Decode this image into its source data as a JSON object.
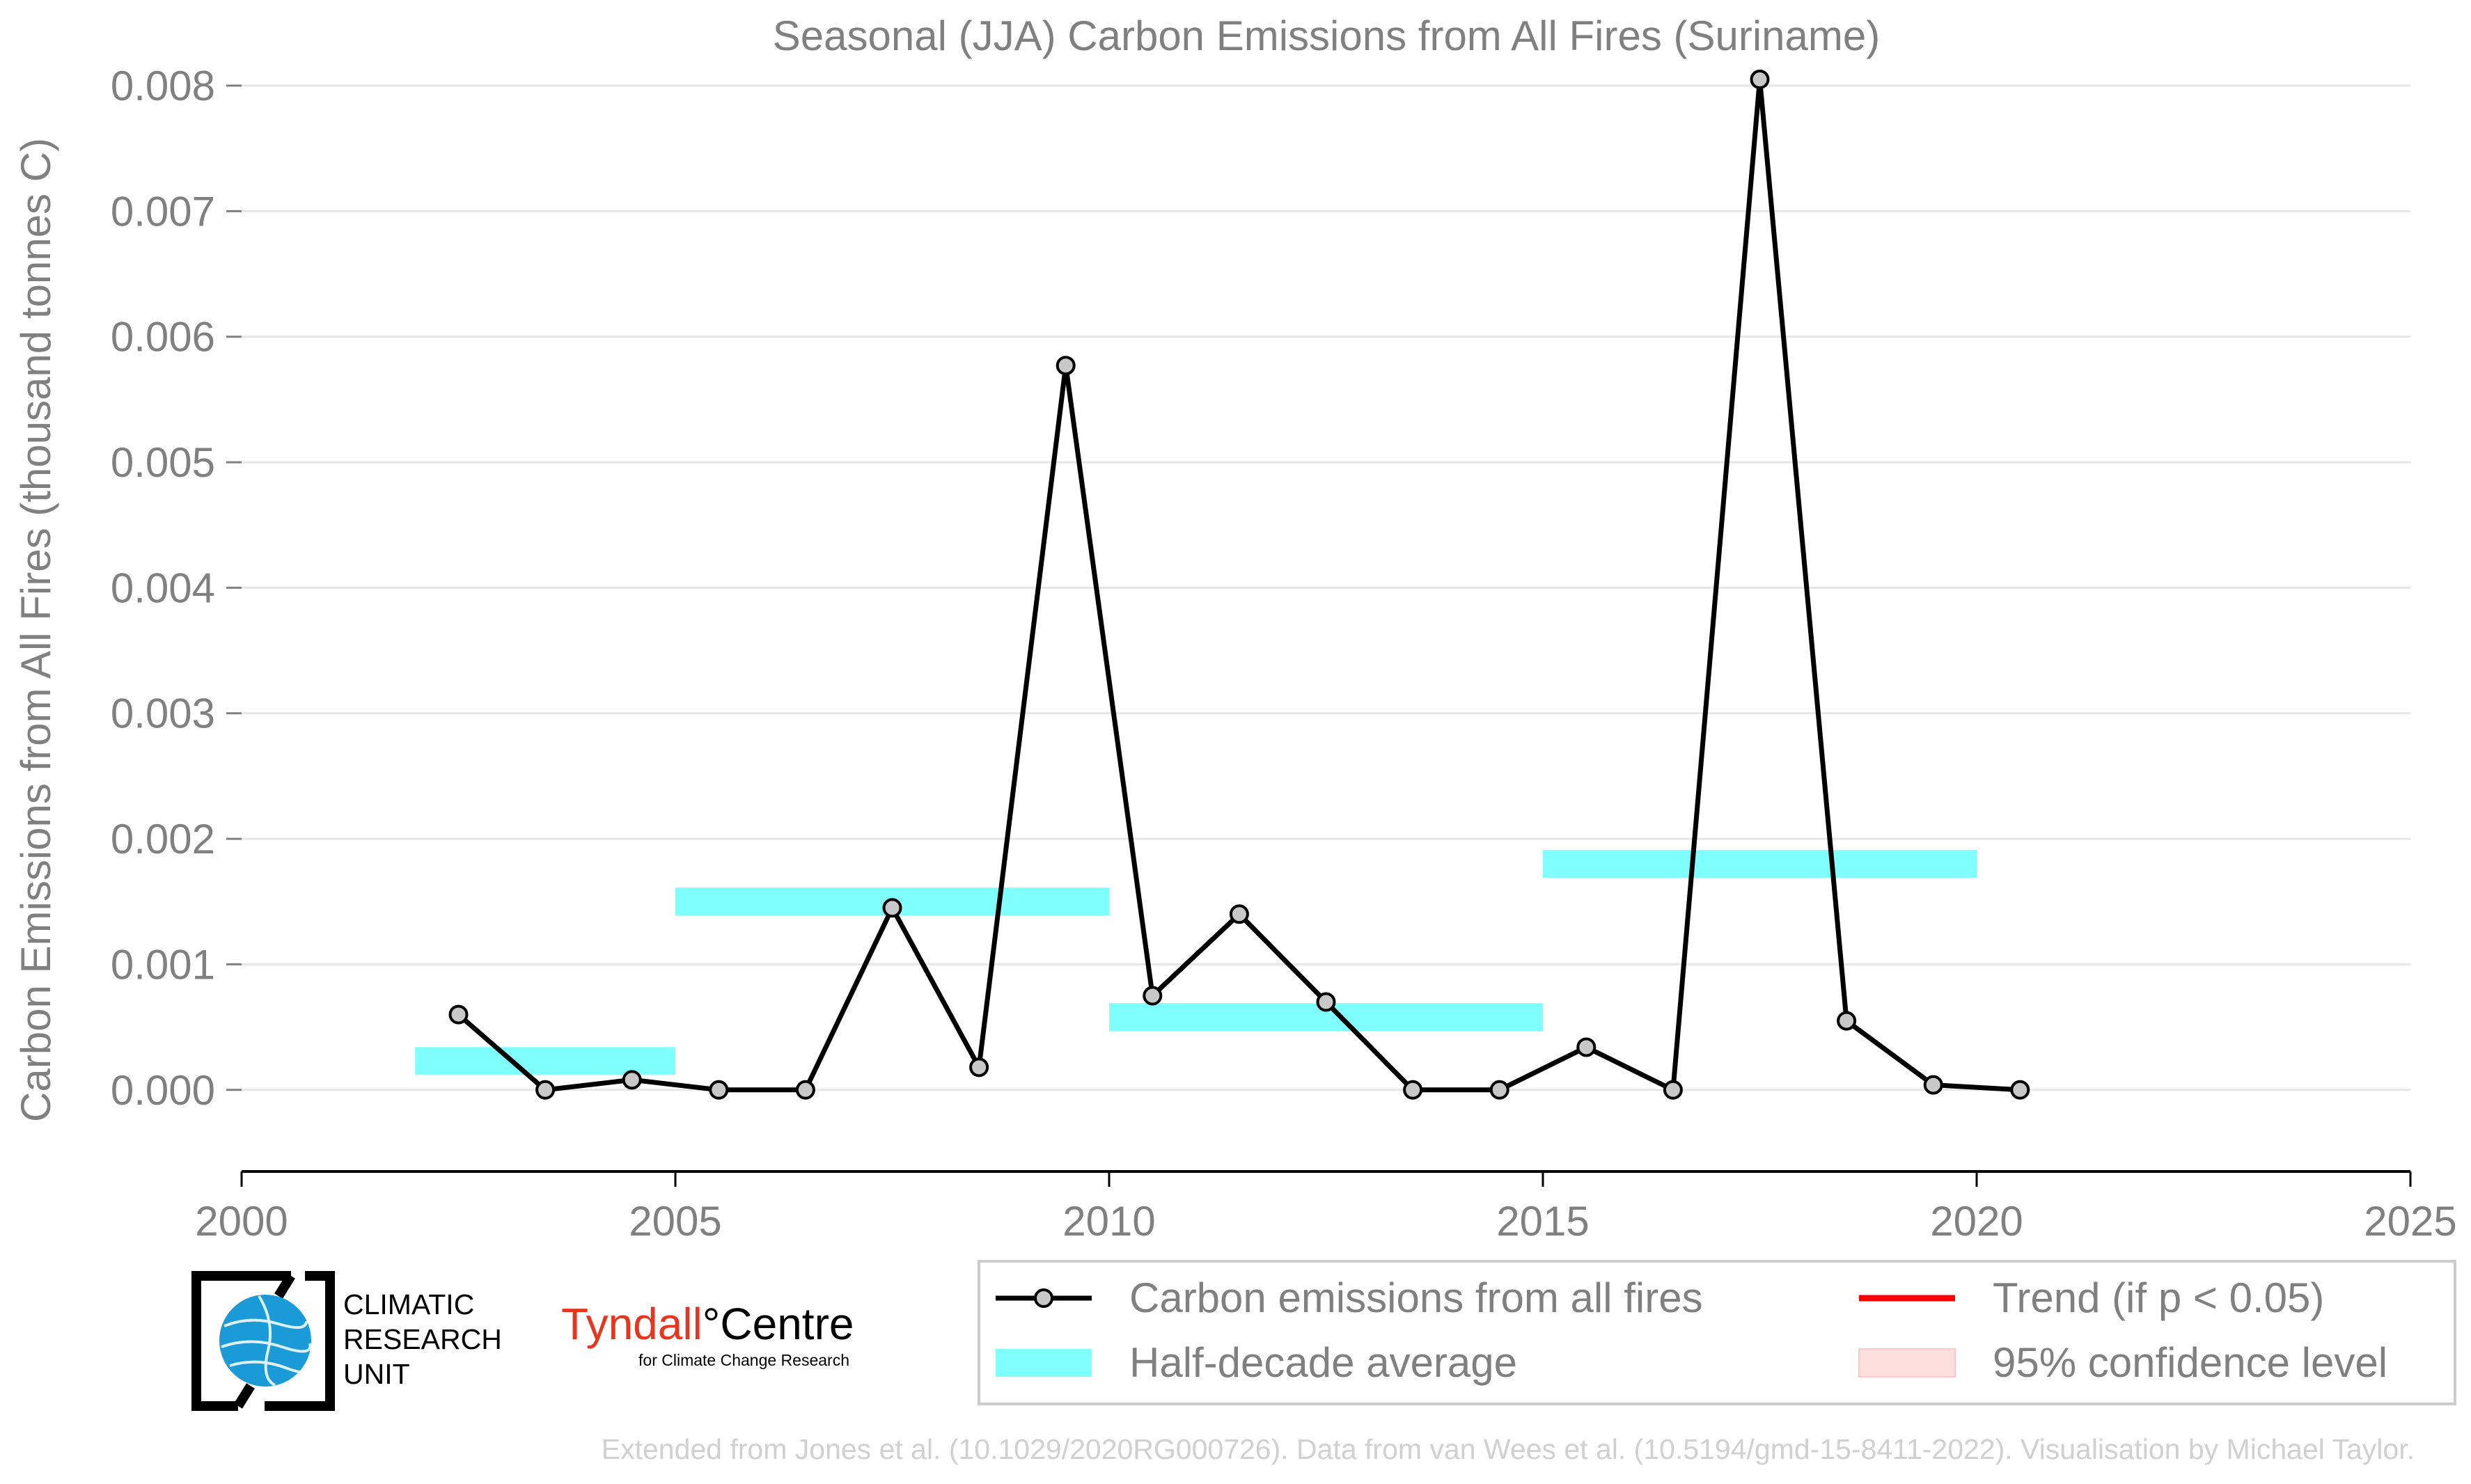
{
  "chart_data": {
    "type": "line",
    "title": "Seasonal (JJA) Carbon Emissions from All Fires (Suriname)",
    "xlabel": "",
    "ylabel": "Carbon Emissions from All Fires (thousand tonnes C)",
    "xlim": [
      2000,
      2025
    ],
    "ylim": [
      -0.00065,
      0.0081
    ],
    "x_ticks": [
      2000,
      2005,
      2010,
      2015,
      2020,
      2025
    ],
    "x_tick_labels": [
      "2000",
      "2005",
      "2010",
      "2015",
      "2020",
      "2025"
    ],
    "y_ticks": [
      0,
      0.001,
      0.002,
      0.003,
      0.004,
      0.005,
      0.006,
      0.007,
      0.008
    ],
    "y_tick_labels": [
      "0.000",
      "0.001",
      "0.002",
      "0.003",
      "0.004",
      "0.005",
      "0.006",
      "0.007",
      "0.008"
    ],
    "grid": "horizontal",
    "series": [
      {
        "name": "Carbon emissions from all fires",
        "color": "#000000",
        "marker_fill": "#c8c8c8",
        "x": [
          2002.5,
          2003.5,
          2004.5,
          2005.5,
          2006.5,
          2007.5,
          2008.5,
          2009.5,
          2010.5,
          2011.5,
          2012.5,
          2013.5,
          2014.5,
          2015.5,
          2016.5,
          2017.5,
          2018.5,
          2019.5,
          2020.5
        ],
        "y": [
          0.0006,
          0.0,
          8e-05,
          0.0,
          0.0,
          0.00145,
          0.00018,
          0.00577,
          0.00075,
          0.0014,
          0.0007,
          0.0,
          0.0,
          0.00034,
          0.0,
          0.00805,
          0.00055,
          4e-05,
          0.0
        ]
      }
    ],
    "half_decade_average": {
      "name": "Half-decade average",
      "color": "#80ffff",
      "segments": [
        {
          "x0": 2002,
          "x1": 2005,
          "y": 0.00023
        },
        {
          "x0": 2005,
          "x1": 2010,
          "y": 0.0015
        },
        {
          "x0": 2010,
          "x1": 2015,
          "y": 0.00058
        },
        {
          "x0": 2015,
          "x1": 2020,
          "y": 0.0018
        }
      ]
    },
    "legend": {
      "position": "bottom-right",
      "items": [
        {
          "label": "Carbon emissions from all fires",
          "kind": "line-marker",
          "color": "#000000"
        },
        {
          "label": "Trend (if p < 0.05)",
          "kind": "line",
          "color": "#ff0000"
        },
        {
          "label": "Half-decade average",
          "kind": "band",
          "color": "#80ffff"
        },
        {
          "label": "95% confidence level",
          "kind": "patch",
          "color": "#ffdede"
        }
      ]
    }
  },
  "logos": {
    "cru": {
      "line1": "CLIMATIC",
      "line2": "RESEARCH",
      "line3": "UNIT",
      "globe_color": "#1a9ad6"
    },
    "tyndall": {
      "name_red": "Tyndall",
      "degree": "°",
      "name_black": "Centre",
      "tagline": "for Climate Change Research",
      "red_color": "#e8351e"
    }
  },
  "footer": {
    "credit": "Extended from Jones et al. (10.1029/2020RG000726). Data from van Wees et al. (10.5194/gmd-15-8411-2022). Visualisation by Michael Taylor."
  }
}
